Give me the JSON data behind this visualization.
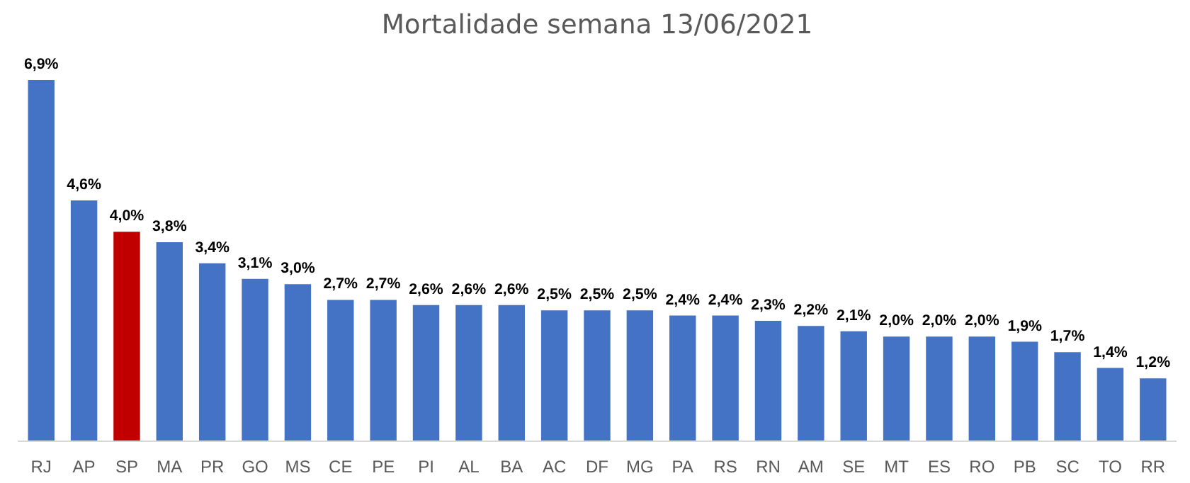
{
  "chart_data": {
    "type": "bar",
    "title": "Mortalidade semana 13/06/2021",
    "categories": [
      "RJ",
      "AP",
      "SP",
      "MA",
      "PR",
      "GO",
      "MS",
      "CE",
      "PE",
      "PI",
      "AL",
      "BA",
      "AC",
      "DF",
      "MG",
      "PA",
      "RS",
      "RN",
      "AM",
      "SE",
      "MT",
      "ES",
      "RO",
      "PB",
      "SC",
      "TO",
      "RR"
    ],
    "values": [
      6.9,
      4.6,
      4.0,
      3.8,
      3.4,
      3.1,
      3.0,
      2.7,
      2.7,
      2.6,
      2.6,
      2.6,
      2.5,
      2.5,
      2.5,
      2.4,
      2.4,
      2.3,
      2.2,
      2.1,
      2.0,
      2.0,
      2.0,
      1.9,
      1.7,
      1.4,
      1.2
    ],
    "value_labels": [
      "6,9%",
      "4,6%",
      "4,0%",
      "3,8%",
      "3,4%",
      "3,1%",
      "3,0%",
      "2,7%",
      "2,7%",
      "2,6%",
      "2,6%",
      "2,6%",
      "2,5%",
      "2,5%",
      "2,5%",
      "2,4%",
      "2,4%",
      "2,3%",
      "2,2%",
      "2,1%",
      "2,0%",
      "2,0%",
      "2,0%",
      "1,9%",
      "1,7%",
      "1,4%",
      "1,2%"
    ],
    "colors": [
      "#4472c4",
      "#4472c4",
      "#c00000",
      "#4472c4",
      "#4472c4",
      "#4472c4",
      "#4472c4",
      "#4472c4",
      "#4472c4",
      "#4472c4",
      "#4472c4",
      "#4472c4",
      "#4472c4",
      "#4472c4",
      "#4472c4",
      "#4472c4",
      "#4472c4",
      "#4472c4",
      "#4472c4",
      "#4472c4",
      "#4472c4",
      "#4472c4",
      "#4472c4",
      "#4472c4",
      "#4472c4",
      "#4472c4",
      "#4472c4"
    ],
    "grid": false
  }
}
